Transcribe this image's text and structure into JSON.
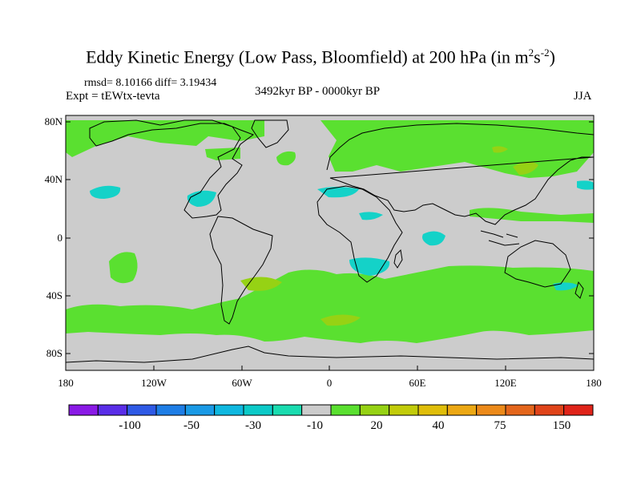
{
  "title": "Eddy Kinetic Energy (Low Pass, Bloomfield) at 200 hPa (in m",
  "title_sup1": "2",
  "title_mid": "s",
  "title_sup2": "-2",
  "title_close": ")",
  "stats": "rmsd= 8.10166 diff= 3.19434",
  "expt": "Expt = tEWtx-tevta",
  "period": "3492kyr BP - 0000kyr BP",
  "season": "JJA",
  "lat_labels": [
    "80N",
    "40N",
    "0",
    "40S",
    "80S"
  ],
  "lon_labels": [
    "180",
    "120W",
    "60W",
    "0",
    "60E",
    "120E",
    "180"
  ],
  "colorbar": {
    "colors": [
      "#8a1ae6",
      "#5a2ee8",
      "#2f5ae6",
      "#1e7ee6",
      "#1a9ae6",
      "#10b8e0",
      "#0ccac8",
      "#1adcb0",
      "#cccccc",
      "#5ae030",
      "#96d214",
      "#c2cc0a",
      "#e0be0a",
      "#eca814",
      "#ec8a1a",
      "#e4661c",
      "#e0441a",
      "#e0241a"
    ],
    "labels": [
      "-100",
      "-50",
      "-30",
      "-10",
      "20",
      "40",
      "75",
      "150"
    ]
  },
  "map_colors": {
    "background": "#cccccc",
    "positive": "#5ae030",
    "strong_positive": "#96d214",
    "negative": "#14d2c8",
    "coast": "#000000"
  }
}
